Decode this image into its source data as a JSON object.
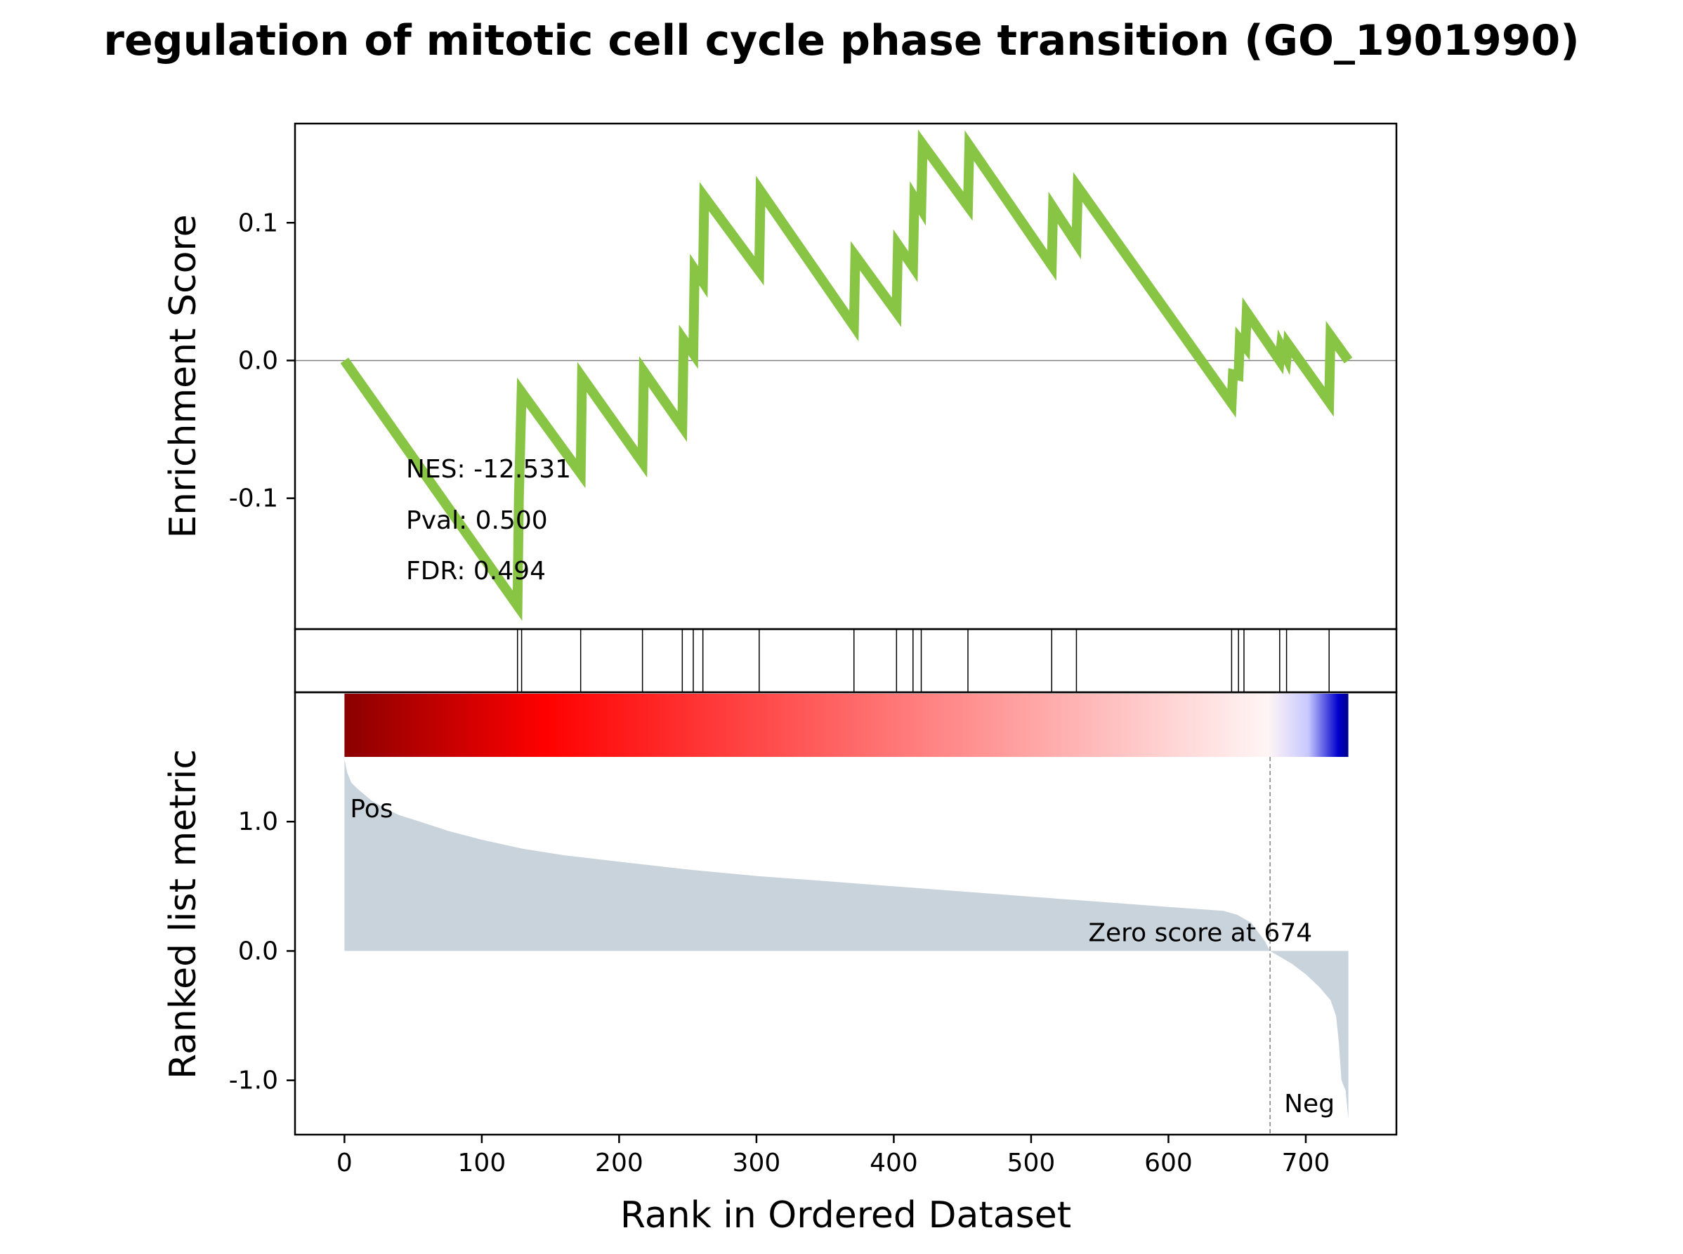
{
  "chart_data": {
    "type": "line",
    "title": "regulation of mitotic cell cycle phase transition (GO_1901990)",
    "xlabel": "Rank in Ordered Dataset",
    "xlim": [
      -36,
      766
    ],
    "x_ticks": [
      0,
      100,
      200,
      300,
      400,
      500,
      600,
      700
    ],
    "colors": {
      "es_line": "#88c544",
      "metric_fill": "#c9d3dc",
      "pos_label": "#ff0000",
      "neg_label": "#0000ff"
    },
    "enrichment": {
      "ylabel": "Enrichment Score",
      "ylim": [
        -0.195,
        0.172
      ],
      "y_ticks": [
        0.1,
        0.0,
        -0.1
      ],
      "y_tick_labels": [
        "0.1",
        "0.0",
        "-0.1"
      ],
      "zero_line": true,
      "points": [
        [
          0,
          0.0
        ],
        [
          126,
          -0.178
        ],
        [
          127,
          -0.1
        ],
        [
          129,
          -0.023
        ],
        [
          172,
          -0.082
        ],
        [
          173,
          -0.012
        ],
        [
          217,
          -0.074
        ],
        [
          218,
          -0.008
        ],
        [
          246,
          -0.048
        ],
        [
          247,
          0.015
        ],
        [
          254,
          0.005
        ],
        [
          255,
          0.066
        ],
        [
          261,
          0.057
        ],
        [
          262,
          0.119
        ],
        [
          302,
          0.065
        ],
        [
          303,
          0.123
        ],
        [
          371,
          0.025
        ],
        [
          372,
          0.076
        ],
        [
          402,
          0.035
        ],
        [
          403,
          0.084
        ],
        [
          414,
          0.068
        ],
        [
          415,
          0.118
        ],
        [
          420,
          0.11
        ],
        [
          421,
          0.157
        ],
        [
          454,
          0.112
        ],
        [
          455,
          0.156
        ],
        [
          515,
          0.069
        ],
        [
          516,
          0.111
        ],
        [
          533,
          0.085
        ],
        [
          534,
          0.126
        ],
        [
          646,
          -0.031
        ],
        [
          647,
          -0.01
        ],
        [
          651,
          -0.011
        ],
        [
          652,
          0.015
        ],
        [
          656,
          0.01
        ],
        [
          657,
          0.035
        ],
        [
          681,
          0.0
        ],
        [
          682,
          0.01
        ],
        [
          686,
          0.002
        ],
        [
          687,
          0.012
        ],
        [
          717,
          -0.03
        ],
        [
          718,
          0.018
        ],
        [
          731,
          0.0
        ]
      ]
    },
    "hits": [
      126,
      129,
      172,
      217,
      246,
      254,
      261,
      302,
      371,
      402,
      414,
      420,
      454,
      515,
      533,
      646,
      651,
      655,
      681,
      686,
      717
    ],
    "stats": {
      "nes": "NES: -12.531",
      "pval": "Pval: 0.500",
      "fdr": "FDR: 0.494"
    },
    "ranked_metric": {
      "ylabel": "Ranked list metric",
      "ylim": [
        -1.42,
        2.0
      ],
      "y_ticks": [
        1.0,
        0.0,
        -1.0
      ],
      "y_tick_labels": [
        "1.0",
        "0.0",
        "-1.0"
      ],
      "n_genes": 731,
      "zero_cross": 674,
      "zero_label": "Zero score at 674",
      "pos_label": "Pos",
      "neg_label": "Neg",
      "curve": [
        [
          0,
          1.48
        ],
        [
          2,
          1.38
        ],
        [
          5,
          1.3
        ],
        [
          10,
          1.25
        ],
        [
          20,
          1.16
        ],
        [
          30,
          1.1
        ],
        [
          40,
          1.05
        ],
        [
          55,
          1.0
        ],
        [
          75,
          0.93
        ],
        [
          100,
          0.86
        ],
        [
          130,
          0.79
        ],
        [
          160,
          0.74
        ],
        [
          200,
          0.69
        ],
        [
          250,
          0.63
        ],
        [
          300,
          0.58
        ],
        [
          350,
          0.54
        ],
        [
          400,
          0.5
        ],
        [
          450,
          0.46
        ],
        [
          500,
          0.42
        ],
        [
          550,
          0.38
        ],
        [
          600,
          0.34
        ],
        [
          640,
          0.31
        ],
        [
          650,
          0.28
        ],
        [
          660,
          0.22
        ],
        [
          670,
          0.08
        ],
        [
          674,
          0.0
        ],
        [
          690,
          -0.1
        ],
        [
          700,
          -0.18
        ],
        [
          710,
          -0.28
        ],
        [
          718,
          -0.38
        ],
        [
          722,
          -0.5
        ],
        [
          724,
          -0.7
        ],
        [
          726,
          -1.0
        ],
        [
          729,
          -1.08
        ],
        [
          731,
          -1.3
        ]
      ]
    },
    "colorbar": {
      "stops": [
        {
          "at": 0.0,
          "color": "#8b0000"
        },
        {
          "at": 0.2,
          "color": "#ff0000"
        },
        {
          "at": 0.92,
          "color": "#fff5f5"
        },
        {
          "at": 0.96,
          "color": "#c8c8ff"
        },
        {
          "at": 0.99,
          "color": "#0000cd"
        },
        {
          "at": 1.0,
          "color": "#00008b"
        }
      ]
    }
  }
}
